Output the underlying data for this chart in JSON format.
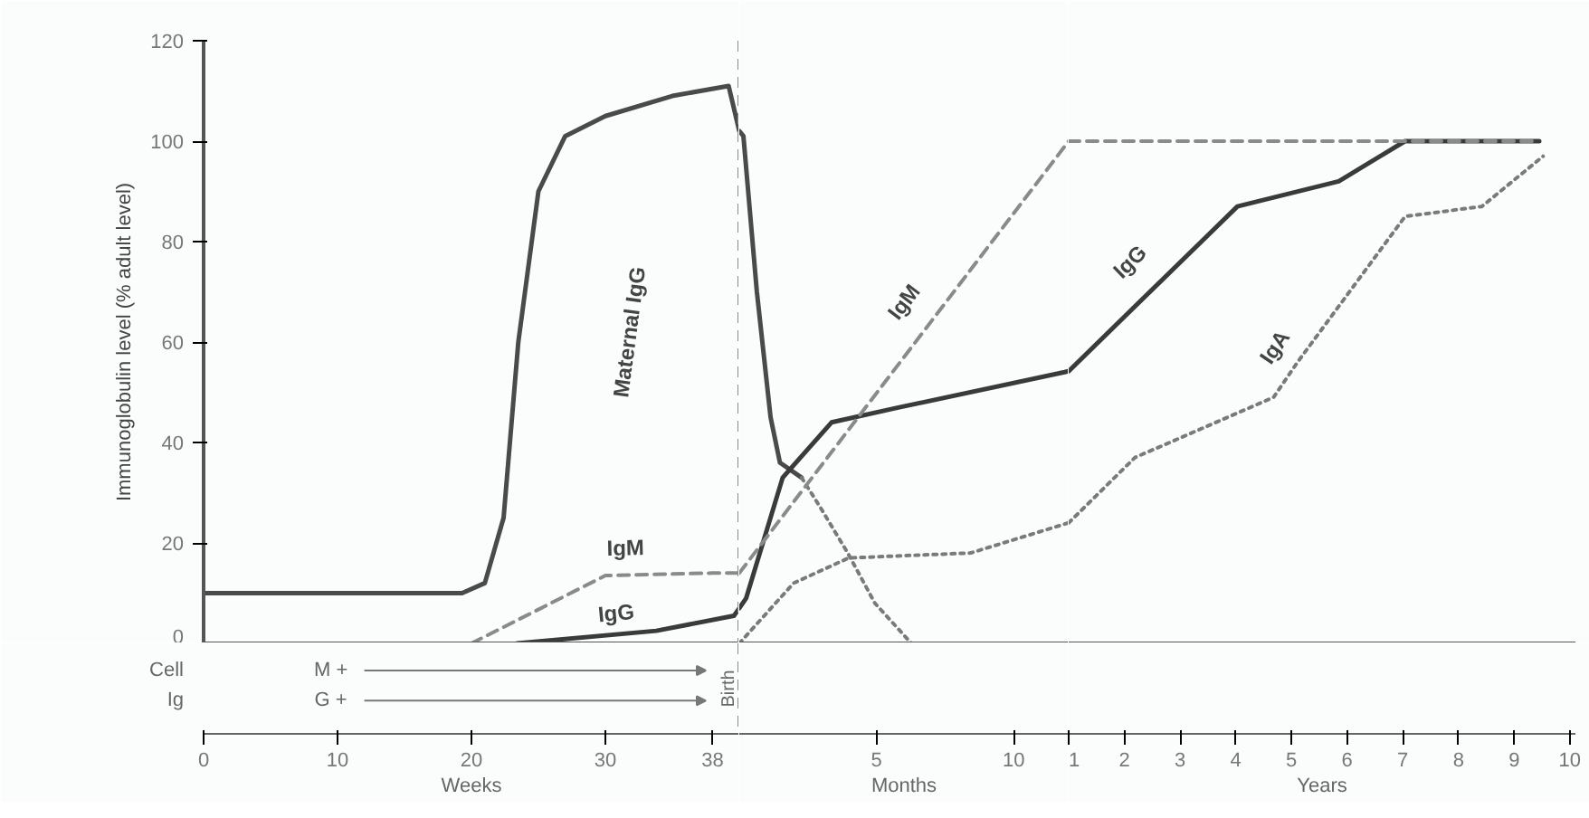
{
  "chart_data": [
    {
      "type": "line",
      "ylabel": "Immunoglobulin level (% adult level)",
      "xlabel": "Weeks",
      "xlim": [
        0,
        40
      ],
      "xticks": [
        0,
        10,
        20,
        30,
        38
      ],
      "ylim": [
        0,
        120
      ],
      "yticks": [
        0,
        20,
        40,
        60,
        80,
        100,
        120
      ],
      "grid": false,
      "marker": "none",
      "series": [
        {
          "color": "#4a4a4a",
          "line_style": "solid",
          "x": [
            0,
            19.3,
            21,
            22.4,
            23.5,
            25,
            27,
            30,
            35,
            39.2,
            40
          ],
          "values": [
            10,
            10,
            12,
            25,
            60,
            90,
            101,
            105,
            109,
            111,
            102
          ]
        },
        {
          "color": "#3a3a3a",
          "line_style": "solid",
          "x": [
            23.4,
            33.8,
            39.6,
            40
          ],
          "values": [
            0,
            2.5,
            5.5,
            7
          ]
        },
        {
          "color": "#8a8a8a",
          "line_style": "dashed",
          "x": [
            20,
            30,
            38,
            40
          ],
          "values": [
            0,
            13.5,
            14,
            14
          ]
        }
      ],
      "ref_lines": [
        {
          "axis": "x",
          "value": 40,
          "label": "Birth",
          "line_style": "dashed",
          "color": "#8a8a8a"
        }
      ],
      "annotations": [
        "Maternal IgG",
        "IgM",
        "IgG",
        "Cell",
        "M +",
        "Ig",
        "G +"
      ]
    },
    {
      "type": "line",
      "xlabel": "Months",
      "xlim": [
        0,
        12
      ],
      "xticks": [
        5,
        10
      ],
      "ylim": [
        0,
        120
      ],
      "tick_labels": "x",
      "grid": false,
      "marker": "none",
      "series": [
        {
          "color": "#4a4a4a",
          "line_style": "solid",
          "x": [
            0,
            0.15,
            0.64,
            1.14,
            1.48,
            2.27
          ],
          "values": [
            102,
            101,
            70,
            45,
            36,
            33
          ]
        },
        {
          "color": "#7a7a7a",
          "line_style": "dotted",
          "x": [
            2.27,
            2.96,
            3.95,
            4.94,
            6.27
          ],
          "values": [
            33,
            27,
            18,
            8,
            0
          ]
        },
        {
          "color": "#3a3a3a",
          "line_style": "solid",
          "x": [
            0,
            0.25,
            1.58,
            3.36,
            5.83,
            11.85,
            12
          ],
          "values": [
            7,
            9,
            33,
            44,
            47,
            54,
            54.2
          ]
        },
        {
          "color": "#8a8a8a",
          "line_style": "dashed",
          "x": [
            0,
            12
          ],
          "values": [
            14,
            100
          ]
        },
        {
          "color": "#7a7a7a",
          "line_style": "dotted",
          "x": [
            0,
            1.98,
            3.98,
            8.43,
            12
          ],
          "values": [
            0,
            12,
            17,
            18,
            24
          ]
        }
      ],
      "annotations": [
        "IgM"
      ]
    },
    {
      "type": "line",
      "xlabel": "Years",
      "xlim": [
        1,
        10.1
      ],
      "xticks": [
        1,
        2,
        3,
        4,
        5,
        6,
        7,
        8,
        9,
        10
      ],
      "ylim": [
        0,
        120
      ],
      "tick_labels": "x",
      "grid": false,
      "marker": "none",
      "series": [
        {
          "color": "#3a3a3a",
          "line_style": "solid",
          "x": [
            1,
            4.03,
            5.85,
            7.04,
            9.45
          ],
          "values": [
            54.2,
            87,
            92,
            100,
            100
          ]
        },
        {
          "color": "#8a8a8a",
          "line_style": "dashed",
          "x": [
            1,
            9.45
          ],
          "values": [
            100,
            100
          ]
        },
        {
          "color": "#7a7a7a",
          "line_style": "dotted",
          "x": [
            1,
            2.19,
            4.68,
            5.11,
            7.04,
            8.42,
            9.52
          ],
          "values": [
            24,
            37,
            49,
            56,
            85,
            87,
            97
          ]
        }
      ],
      "annotations": [
        "IgG",
        "IgA"
      ]
    }
  ]
}
